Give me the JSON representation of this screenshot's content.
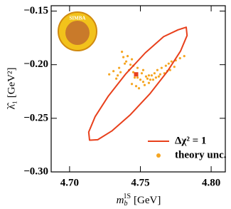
{
  "chart_data": {
    "type": "scatter",
    "logo_text": "SIMBA",
    "xlabel": {
      "base": "m",
      "sub": "b",
      "sup": "1S",
      "unit": "[GeV]"
    },
    "ylabel": "λ̂₁ [GeV²]",
    "xlim": [
      4.687,
      4.81
    ],
    "ylim": [
      -0.3,
      -0.145
    ],
    "xticks": [
      {
        "value": 4.7,
        "label": "4.70"
      },
      4.75,
      {
        "value": 4.8,
        "label": "4.80"
      }
    ],
    "yticks": [
      {
        "value": -0.15,
        "label": "−0.15"
      },
      {
        "value": -0.2,
        "label": "−0.20"
      },
      {
        "value": -0.25,
        "label": "−0.25"
      },
      {
        "value": -0.3,
        "label": "−0.30"
      }
    ],
    "legend": "lower right",
    "ellipse": {
      "name": "Δχ² = 1",
      "color": "#e8401c",
      "x": [
        4.7824,
        4.783,
        4.7784,
        4.7691,
        4.7567,
        4.743,
        4.7301,
        4.7199,
        4.7141,
        4.7135,
        4.7181,
        4.7274,
        4.7398,
        4.7535,
        4.7664,
        4.7766
      ],
      "y": [
        -0.1651,
        -0.1728,
        -0.1872,
        -0.2063,
        -0.2272,
        -0.2466,
        -0.2616,
        -0.27,
        -0.2704,
        -0.2628,
        -0.2484,
        -0.2292,
        -0.2084,
        -0.1889,
        -0.1739,
        -0.1675
      ]
    },
    "best_fit": {
      "x": 4.747,
      "y": -0.209,
      "color": "#e8401c"
    },
    "series": [
      {
        "name": "theory unc.",
        "color": "#f5a623",
        "x": [
          4.737,
          4.741,
          4.744,
          4.739,
          4.745,
          4.748,
          4.742,
          4.736,
          4.734,
          4.746,
          4.75,
          4.752,
          4.755,
          4.758,
          4.76,
          4.762,
          4.765,
          4.768,
          4.77,
          4.772,
          4.775,
          4.778,
          4.781,
          4.744,
          4.747,
          4.749,
          4.753,
          4.756,
          4.759,
          4.763,
          4.767,
          4.771,
          4.735,
          4.731,
          4.728,
          4.733,
          4.74,
          4.743,
          4.751,
          4.754,
          4.757,
          4.761,
          4.764,
          4.769,
          4.774,
          4.738,
          4.745,
          4.748,
          4.752,
          4.756
        ],
        "values": [
          -0.188,
          -0.192,
          -0.195,
          -0.199,
          -0.201,
          -0.203,
          -0.205,
          -0.207,
          -0.21,
          -0.212,
          -0.214,
          -0.216,
          -0.213,
          -0.21,
          -0.208,
          -0.205,
          -0.203,
          -0.201,
          -0.199,
          -0.197,
          -0.196,
          -0.194,
          -0.192,
          -0.218,
          -0.22,
          -0.222,
          -0.219,
          -0.217,
          -0.214,
          -0.211,
          -0.208,
          -0.205,
          -0.203,
          -0.206,
          -0.209,
          -0.213,
          -0.197,
          -0.2,
          -0.208,
          -0.211,
          -0.214,
          -0.212,
          -0.209,
          -0.206,
          -0.202,
          -0.193,
          -0.207,
          -0.212,
          -0.205,
          -0.21
        ]
      }
    ]
  }
}
